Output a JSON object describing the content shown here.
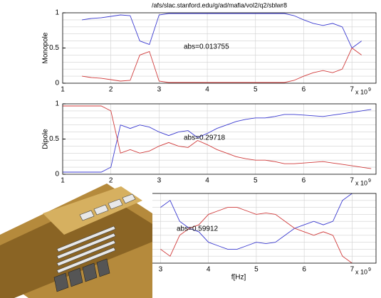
{
  "chart_data": [
    {
      "type": "line",
      "title": "/afs/slac.stanford.edu/g/ad/mafia/vol2/q2/sblwr8",
      "ylabel": "Monopole",
      "annotation": "abs=0.013755",
      "grid": true,
      "x_scale_label": "x 10",
      "x_scale_power": "9",
      "xlim": [
        1,
        7.5
      ],
      "ylim": [
        0,
        1
      ],
      "xticks": [
        1,
        2,
        3,
        4,
        5,
        6,
        7
      ],
      "yticks": [
        0,
        0.5,
        1
      ],
      "x": [
        1.4,
        1.6,
        1.8,
        2.0,
        2.2,
        2.4,
        2.6,
        2.8,
        3.0,
        3.2,
        3.4,
        3.6,
        3.8,
        4.0,
        4.2,
        4.4,
        4.6,
        4.8,
        5.0,
        5.2,
        5.4,
        5.6,
        5.8,
        6.0,
        6.2,
        6.4,
        6.6,
        6.8,
        7.0,
        7.2
      ],
      "series": [
        {
          "color": "#3a3ad0",
          "values": [
            0.9,
            0.92,
            0.93,
            0.95,
            0.97,
            0.96,
            0.6,
            0.55,
            0.97,
            0.99,
            0.99,
            0.99,
            0.99,
            0.99,
            0.99,
            0.99,
            0.99,
            0.99,
            0.99,
            0.99,
            0.99,
            0.99,
            0.96,
            0.9,
            0.85,
            0.82,
            0.85,
            0.8,
            0.5,
            0.6
          ]
        },
        {
          "color": "#d03a3a",
          "values": [
            0.1,
            0.08,
            0.07,
            0.05,
            0.03,
            0.04,
            0.4,
            0.45,
            0.03,
            0.01,
            0.01,
            0.01,
            0.01,
            0.01,
            0.01,
            0.01,
            0.01,
            0.01,
            0.01,
            0.01,
            0.01,
            0.01,
            0.04,
            0.1,
            0.15,
            0.18,
            0.15,
            0.2,
            0.5,
            0.4
          ]
        }
      ]
    },
    {
      "type": "line",
      "ylabel": "Dipole",
      "annotation": "abs=0.29718",
      "grid": true,
      "x_scale_label": "x 10",
      "x_scale_power": "9",
      "xlim": [
        1,
        7.5
      ],
      "ylim": [
        0,
        1
      ],
      "xticks": [
        1,
        2,
        3,
        4,
        5,
        6,
        7
      ],
      "yticks": [
        0,
        0.5,
        1
      ],
      "x": [
        1.0,
        1.2,
        1.4,
        1.6,
        1.8,
        2.0,
        2.2,
        2.4,
        2.6,
        2.8,
        3.0,
        3.2,
        3.4,
        3.6,
        3.8,
        4.0,
        4.2,
        4.4,
        4.6,
        4.8,
        5.0,
        5.2,
        5.4,
        5.6,
        5.8,
        6.0,
        6.2,
        6.4,
        6.6,
        6.8,
        7.0,
        7.2,
        7.4
      ],
      "series": [
        {
          "color": "#3a3ad0",
          "values": [
            0.03,
            0.03,
            0.03,
            0.03,
            0.03,
            0.1,
            0.7,
            0.65,
            0.7,
            0.67,
            0.6,
            0.55,
            0.6,
            0.62,
            0.52,
            0.58,
            0.65,
            0.7,
            0.75,
            0.78,
            0.8,
            0.8,
            0.82,
            0.85,
            0.85,
            0.84,
            0.83,
            0.82,
            0.84,
            0.86,
            0.88,
            0.9,
            0.92
          ]
        },
        {
          "color": "#d03a3a",
          "values": [
            0.97,
            0.97,
            0.97,
            0.97,
            0.97,
            0.9,
            0.3,
            0.35,
            0.3,
            0.33,
            0.4,
            0.45,
            0.4,
            0.38,
            0.48,
            0.42,
            0.35,
            0.3,
            0.25,
            0.22,
            0.2,
            0.2,
            0.18,
            0.15,
            0.15,
            0.16,
            0.17,
            0.18,
            0.16,
            0.14,
            0.12,
            0.1,
            0.08
          ]
        }
      ]
    },
    {
      "type": "line",
      "xlabel": "f[Hz]",
      "annotation": "abs=0.59912",
      "grid": true,
      "x_scale_label": "x 10",
      "x_scale_power": "9",
      "xlim": [
        2.8,
        7.5
      ],
      "ylim": [
        0,
        1
      ],
      "xticks": [
        3,
        4,
        5,
        6,
        7
      ],
      "x": [
        3.0,
        3.2,
        3.4,
        3.6,
        3.8,
        4.0,
        4.2,
        4.4,
        4.6,
        4.8,
        5.0,
        5.2,
        5.4,
        5.6,
        5.8,
        6.0,
        6.2,
        6.4,
        6.6,
        6.8,
        7.0
      ],
      "series": [
        {
          "color": "#3a3ad0",
          "values": [
            0.8,
            0.9,
            0.6,
            0.5,
            0.45,
            0.3,
            0.25,
            0.2,
            0.2,
            0.25,
            0.3,
            0.28,
            0.3,
            0.4,
            0.5,
            0.55,
            0.6,
            0.55,
            0.6,
            0.9,
            1
          ]
        },
        {
          "color": "#d03a3a",
          "values": [
            0.2,
            0.1,
            0.4,
            0.5,
            0.55,
            0.7,
            0.75,
            0.8,
            0.8,
            0.75,
            0.7,
            0.72,
            0.7,
            0.6,
            0.5,
            0.45,
            0.4,
            0.45,
            0.4,
            0.1,
            0
          ]
        }
      ]
    }
  ]
}
